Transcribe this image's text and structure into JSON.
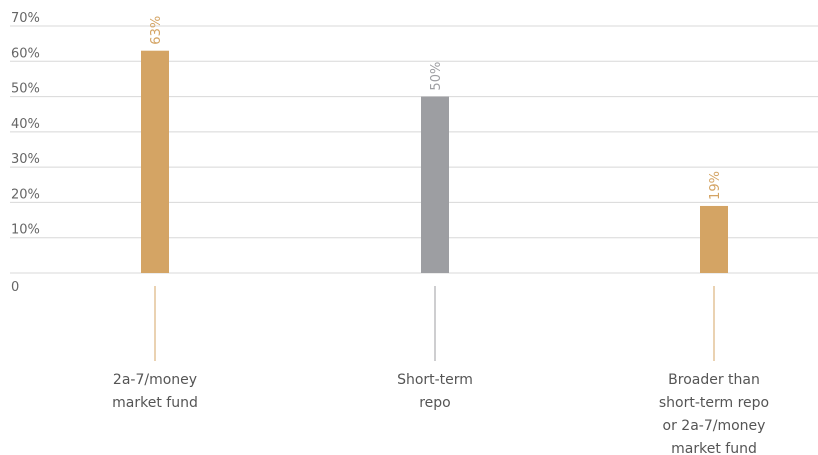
{
  "chart_data": {
    "type": "bar",
    "title": "",
    "xlabel": "",
    "ylabel": "",
    "categories": [
      [
        "2a-7/money",
        "market fund"
      ],
      [
        "Short-term",
        "repo"
      ],
      [
        "Broader than",
        "short-term repo",
        "or 2a-7/money",
        "market fund"
      ]
    ],
    "values": [
      63,
      50,
      19
    ],
    "data_labels": [
      "63%",
      "50%",
      "19%"
    ],
    "bar_colors": [
      "#d4a464",
      "#9d9ea2",
      "#d4a464"
    ],
    "ylim": [
      0,
      70
    ],
    "yticks": [
      0,
      10,
      20,
      30,
      40,
      50,
      60,
      70
    ],
    "ytick_labels": [
      "0",
      "10%",
      "20%",
      "30%",
      "40%",
      "50%",
      "60%",
      "70%"
    ],
    "grid": true,
    "legend": "none"
  }
}
